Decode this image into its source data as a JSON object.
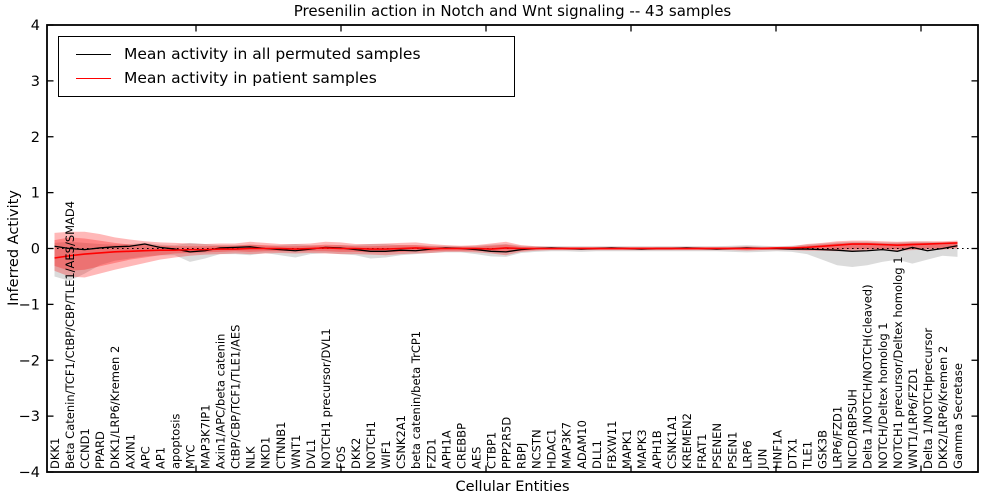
{
  "figure": {
    "title": "Presenilin action in Notch and Wnt signaling -- 43 samples",
    "xlabel": "Cellular Entities",
    "ylabel": "Inferred Activity"
  },
  "legend": {
    "position": "upper left",
    "items": [
      {
        "label": "Mean activity in all permuted samples",
        "color": "#000000"
      },
      {
        "label": "Mean activity in patient samples",
        "color": "#ff0000"
      }
    ]
  },
  "chart_data": {
    "type": "line",
    "title": "Presenilin action in Notch and Wnt signaling -- 43 samples",
    "xlabel": "Cellular Entities",
    "ylabel": "Inferred Activity",
    "ylim": [
      -4,
      4
    ],
    "yticks": [
      4,
      3,
      2,
      1,
      0,
      -1,
      -2,
      -3,
      -4
    ],
    "grid": false,
    "zero_line_style": "dotted",
    "legend_position": "upper left",
    "categories": [
      "DKK1",
      "Beta Catenin/TCF1/CtBP/CBP/TLE1/AES/SMAD4",
      "CCND1",
      "PPARD",
      "DKK1/LRP6/Kremen 2",
      "AXIN1",
      "APC",
      "AP1",
      "apoptosis",
      "MYC",
      "MAP3K7IP1",
      "Axin1/APC/beta catenin",
      "CtBP/CBP/TCF1/TLE1/AES",
      "NLK",
      "NKD1",
      "CTNNB1",
      "WNT1",
      "DVL1",
      "NOTCH1 precursor/DVL1",
      "FOS",
      "DKK2",
      "NOTCH1",
      "WIF1",
      "CSNK2A1",
      "beta catenin/beta TrCP1",
      "FZD1",
      "APH1A",
      "CREBBP",
      "AES",
      "CTBP1",
      "PPP2R5D",
      "RBPJ",
      "NCSTN",
      "HDAC1",
      "MAP3K7",
      "ADAM10",
      "DLL1",
      "FBXW11",
      "MAPK1",
      "MAPK3",
      "APH1B",
      "CSNK1A1",
      "KREMEN2",
      "FRAT1",
      "PSENEN",
      "PSEN1",
      "LRP6",
      "JUN",
      "HNF1A",
      "DTX1",
      "TLE1",
      "GSK3B",
      "LRP6/FZD1",
      "NICD/RBPSUH",
      "Delta 1/NOTCH/NOTCH(cleaved)",
      "NOTCH/Deltex homolog 1",
      "NOTCH1 precursor/Deltex homolog 1",
      "WNT1/LRP6/FZD1",
      "Delta 1/NOTCHprecursor",
      "DKK2/LRP6/Kremen 2",
      "Gamma Secretase"
    ],
    "series": [
      {
        "name": "Mean activity in all permuted samples",
        "color": "#000000",
        "values": [
          0.04,
          0.0,
          -0.02,
          0.01,
          0.03,
          0.04,
          0.08,
          0.02,
          -0.01,
          -0.06,
          -0.04,
          0.01,
          0.02,
          0.03,
          0.0,
          -0.02,
          -0.04,
          -0.01,
          0.02,
          0.01,
          -0.02,
          -0.05,
          -0.05,
          -0.03,
          -0.04,
          -0.01,
          0.01,
          0.0,
          -0.02,
          -0.05,
          -0.06,
          -0.02,
          0.0,
          0.01,
          0.0,
          -0.01,
          0.0,
          0.01,
          0.0,
          -0.01,
          0.0,
          0.0,
          0.01,
          0.0,
          -0.01,
          0.0,
          0.01,
          0.0,
          0.0,
          -0.01,
          -0.01,
          -0.02,
          -0.03,
          -0.05,
          -0.04,
          -0.02,
          -0.05,
          0.02,
          -0.04,
          0.0,
          0.05
        ]
      },
      {
        "name": "Mean activity in patient samples",
        "color": "#ff0000",
        "values": [
          -0.17,
          -0.13,
          -0.1,
          -0.08,
          -0.06,
          -0.05,
          -0.04,
          -0.03,
          -0.03,
          -0.02,
          -0.02,
          -0.01,
          -0.01,
          0.0,
          0.0,
          0.0,
          -0.01,
          0.0,
          0.01,
          0.0,
          0.0,
          -0.01,
          -0.01,
          0.0,
          0.01,
          0.0,
          0.0,
          0.0,
          0.0,
          -0.01,
          0.01,
          0.0,
          0.0,
          0.0,
          0.0,
          0.0,
          0.0,
          0.0,
          0.0,
          0.0,
          0.0,
          0.0,
          0.0,
          0.0,
          0.0,
          0.0,
          0.0,
          0.0,
          0.01,
          0.01,
          0.02,
          0.04,
          0.06,
          0.08,
          0.08,
          0.07,
          0.06,
          0.07,
          0.08,
          0.09,
          0.1
        ]
      }
    ],
    "bands": [
      {
        "name": "permuted samples range",
        "color": "#888888",
        "opacity": 0.3,
        "upper": [
          0.1,
          0.12,
          0.1,
          0.08,
          0.07,
          0.08,
          0.1,
          0.07,
          0.06,
          0.1,
          0.08,
          0.06,
          0.06,
          0.07,
          0.05,
          0.06,
          0.08,
          0.06,
          0.05,
          0.06,
          0.06,
          0.08,
          0.08,
          0.06,
          0.06,
          0.05,
          0.05,
          0.04,
          0.05,
          0.07,
          0.08,
          0.05,
          0.04,
          0.04,
          0.04,
          0.04,
          0.04,
          0.04,
          0.04,
          0.04,
          0.04,
          0.04,
          0.04,
          0.04,
          0.04,
          0.05,
          0.06,
          0.05,
          0.04,
          0.05,
          0.07,
          0.09,
          0.11,
          0.12,
          0.12,
          0.11,
          0.11,
          0.12,
          0.12,
          0.11,
          0.12
        ],
        "lower": [
          -0.5,
          -0.58,
          -0.45,
          -0.3,
          -0.22,
          -0.18,
          -0.14,
          -0.12,
          -0.12,
          -0.24,
          -0.18,
          -0.1,
          -0.1,
          -0.12,
          -0.08,
          -0.12,
          -0.16,
          -0.1,
          -0.08,
          -0.1,
          -0.12,
          -0.18,
          -0.16,
          -0.12,
          -0.1,
          -0.08,
          -0.07,
          -0.07,
          -0.1,
          -0.14,
          -0.15,
          -0.08,
          -0.06,
          -0.05,
          -0.05,
          -0.06,
          -0.05,
          -0.05,
          -0.05,
          -0.05,
          -0.05,
          -0.05,
          -0.05,
          -0.05,
          -0.05,
          -0.06,
          -0.07,
          -0.06,
          -0.05,
          -0.06,
          -0.1,
          -0.2,
          -0.3,
          -0.33,
          -0.3,
          -0.24,
          -0.2,
          -0.27,
          -0.2,
          -0.13,
          -0.15
        ]
      },
      {
        "name": "patient samples range (outer)",
        "color": "#ff0000",
        "opacity": 0.28,
        "upper": [
          0.28,
          0.3,
          0.3,
          0.26,
          0.2,
          0.16,
          0.13,
          0.11,
          0.1,
          0.09,
          0.08,
          0.09,
          0.09,
          0.12,
          0.1,
          0.08,
          0.08,
          0.09,
          0.12,
          0.11,
          0.08,
          0.08,
          0.09,
          0.1,
          0.11,
          0.08,
          0.06,
          0.05,
          0.06,
          0.09,
          0.12,
          0.06,
          0.04,
          0.03,
          0.03,
          0.03,
          0.03,
          0.03,
          0.03,
          0.03,
          0.03,
          0.03,
          0.03,
          0.03,
          0.03,
          0.03,
          0.04,
          0.03,
          0.03,
          0.04,
          0.08,
          0.1,
          0.13,
          0.14,
          0.14,
          0.13,
          0.12,
          0.13,
          0.13,
          0.13,
          0.14
        ],
        "lower": [
          -0.4,
          -0.5,
          -0.52,
          -0.45,
          -0.38,
          -0.32,
          -0.26,
          -0.2,
          -0.16,
          -0.13,
          -0.11,
          -0.1,
          -0.09,
          -0.1,
          -0.09,
          -0.08,
          -0.09,
          -0.08,
          -0.09,
          -0.1,
          -0.1,
          -0.11,
          -0.12,
          -0.1,
          -0.09,
          -0.08,
          -0.06,
          -0.06,
          -0.07,
          -0.09,
          -0.12,
          -0.06,
          -0.04,
          -0.03,
          -0.03,
          -0.03,
          -0.03,
          -0.03,
          -0.03,
          -0.03,
          -0.03,
          -0.03,
          -0.03,
          -0.03,
          -0.03,
          -0.03,
          -0.04,
          -0.03,
          -0.03,
          -0.03,
          -0.04,
          -0.04,
          -0.05,
          -0.04,
          -0.04,
          -0.03,
          -0.04,
          -0.03,
          -0.02,
          -0.02,
          0.0
        ]
      },
      {
        "name": "patient samples range (inner)",
        "color": "#ff0000",
        "opacity": 0.28,
        "upper": [
          0.15,
          0.2,
          0.18,
          0.14,
          0.1,
          0.07,
          0.06,
          0.05,
          0.04,
          0.04,
          0.04,
          0.05,
          0.05,
          0.07,
          0.06,
          0.04,
          0.04,
          0.05,
          0.07,
          0.06,
          0.04,
          0.04,
          0.05,
          0.06,
          0.06,
          0.04,
          0.03,
          0.03,
          0.03,
          0.05,
          0.07,
          0.03,
          0.02,
          0.02,
          0.02,
          0.02,
          0.02,
          0.02,
          0.02,
          0.02,
          0.02,
          0.02,
          0.02,
          0.02,
          0.02,
          0.02,
          0.02,
          0.02,
          0.02,
          0.02,
          0.05,
          0.07,
          0.09,
          0.1,
          0.1,
          0.09,
          0.09,
          0.1,
          0.1,
          0.1,
          0.11
        ],
        "lower": [
          -0.31,
          -0.4,
          -0.38,
          -0.32,
          -0.26,
          -0.2,
          -0.16,
          -0.12,
          -0.09,
          -0.08,
          -0.07,
          -0.06,
          -0.05,
          -0.06,
          -0.05,
          -0.05,
          -0.05,
          -0.05,
          -0.05,
          -0.06,
          -0.06,
          -0.07,
          -0.07,
          -0.06,
          -0.05,
          -0.05,
          -0.04,
          -0.04,
          -0.04,
          -0.05,
          -0.07,
          -0.04,
          -0.02,
          -0.02,
          -0.02,
          -0.02,
          -0.02,
          -0.02,
          -0.02,
          -0.02,
          -0.02,
          -0.02,
          -0.02,
          -0.02,
          -0.02,
          -0.02,
          -0.02,
          -0.02,
          -0.02,
          -0.02,
          -0.02,
          -0.02,
          -0.02,
          -0.01,
          -0.01,
          -0.01,
          -0.01,
          -0.01,
          0.0,
          0.0,
          0.02
        ]
      }
    ]
  }
}
